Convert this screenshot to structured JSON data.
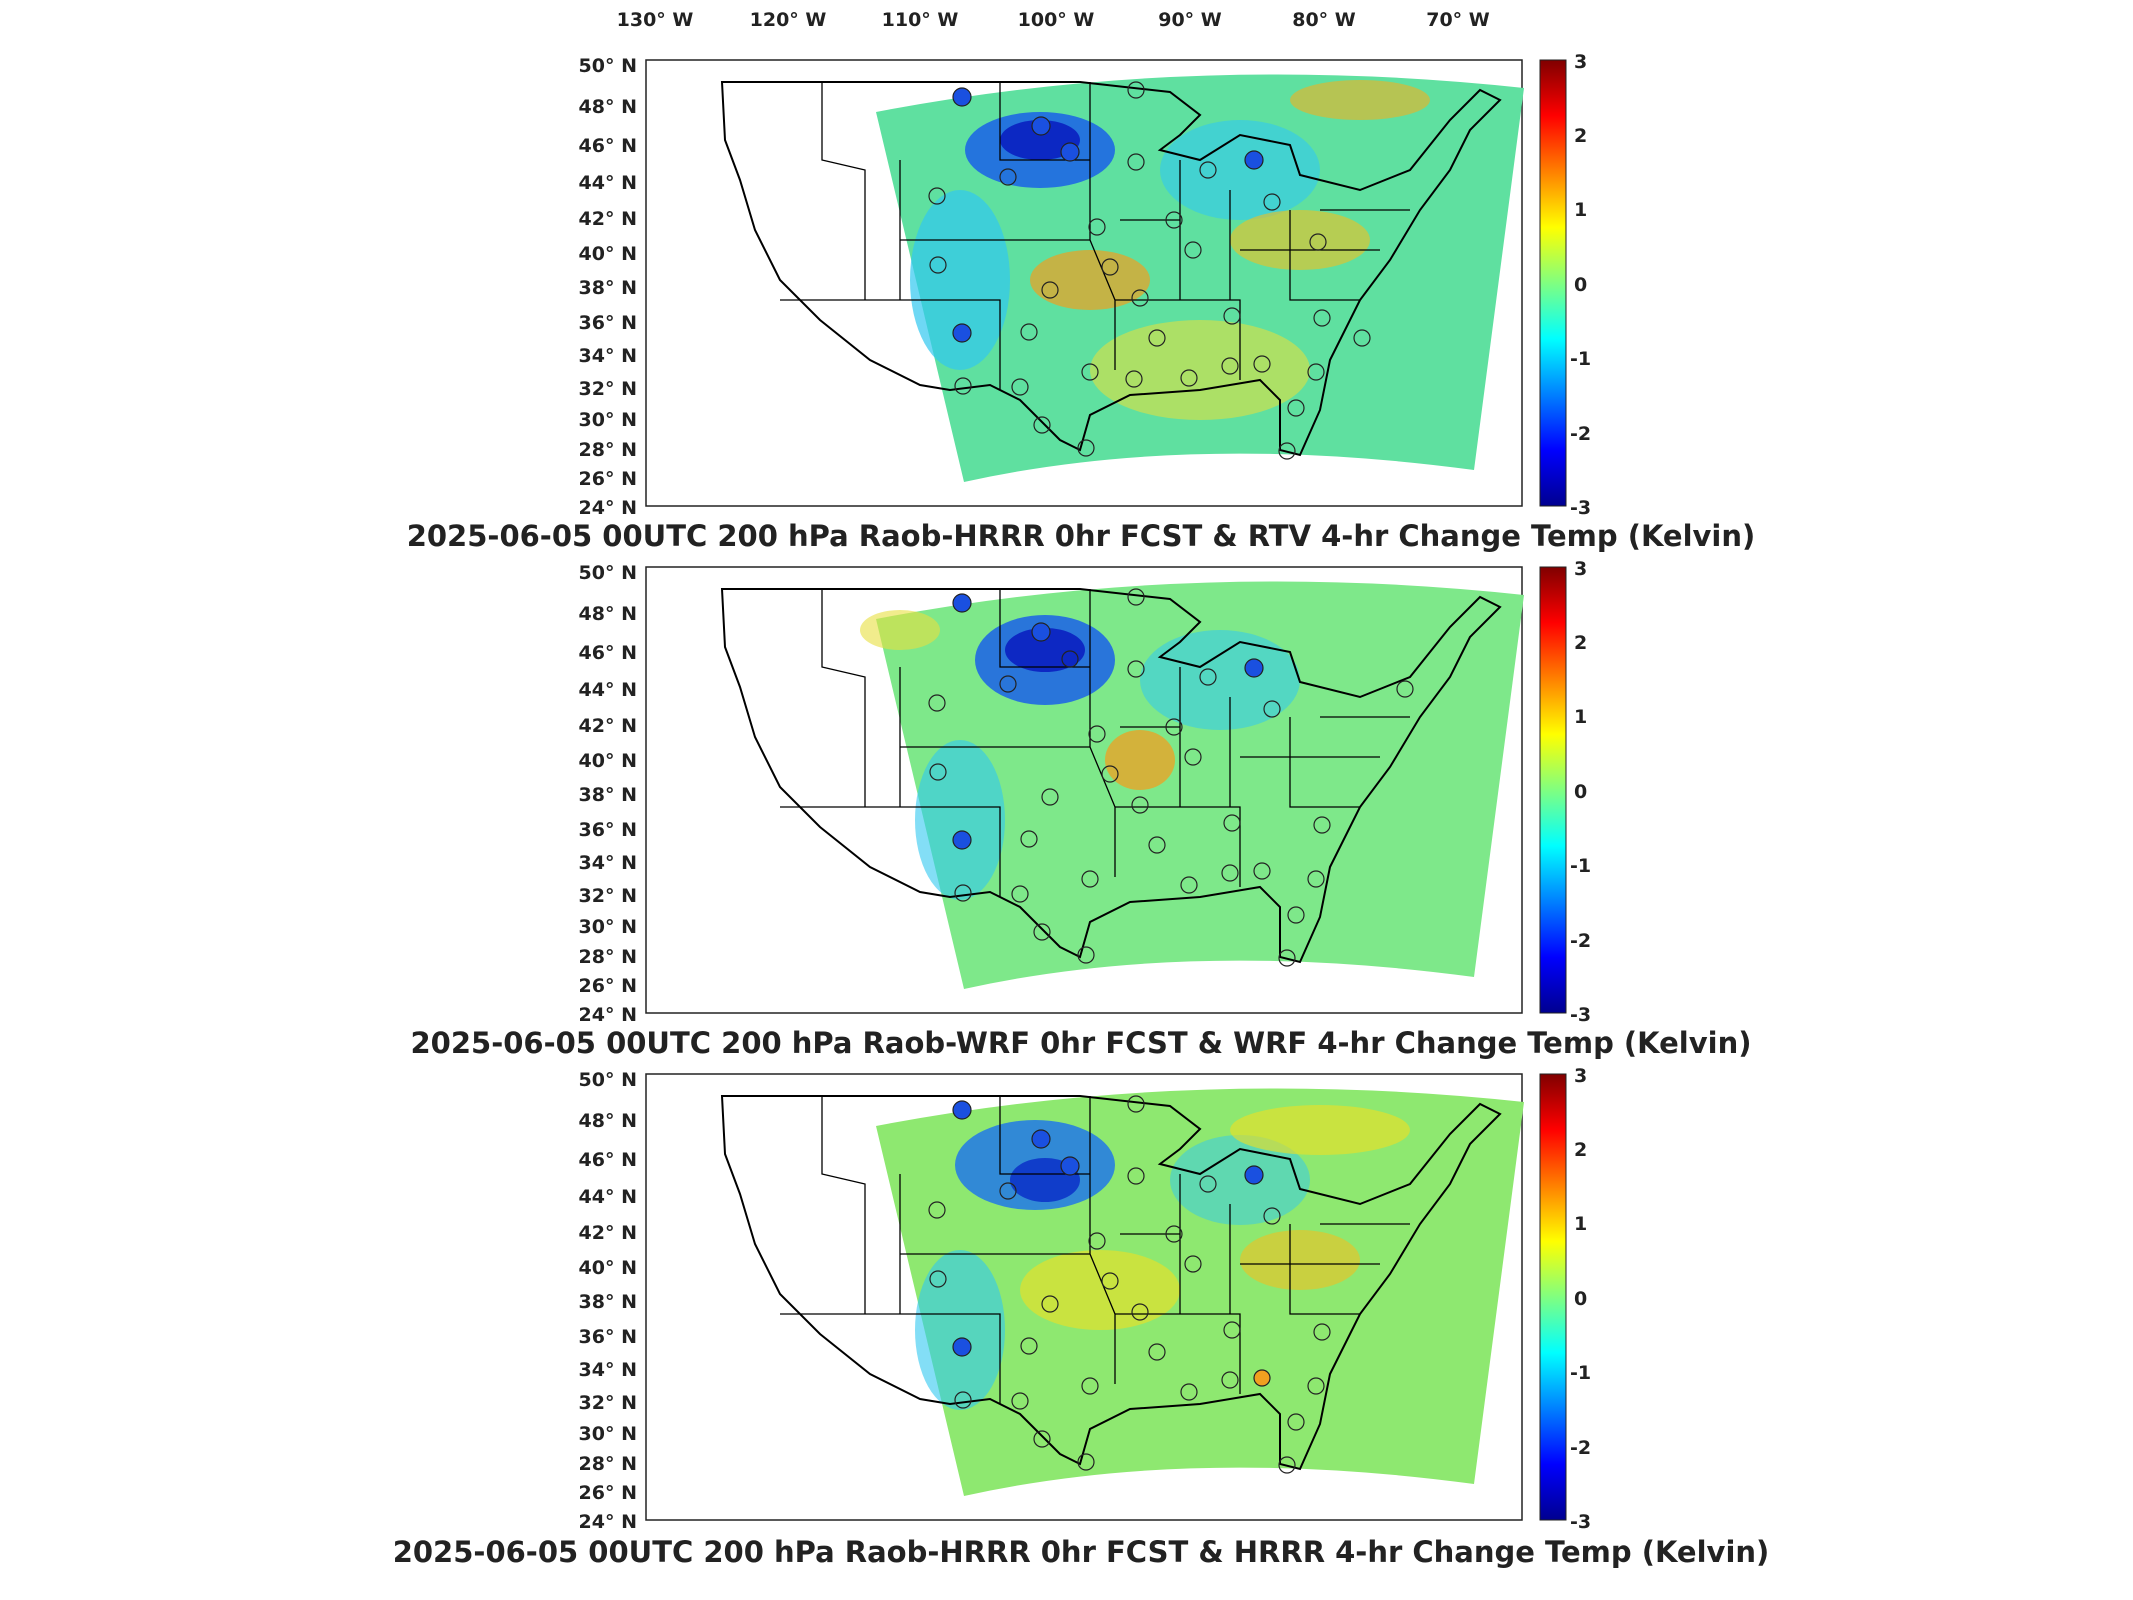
{
  "top_longitude_ticks": [
    "130° W",
    "120° W",
    "110° W",
    "100° W",
    "90° W",
    "80° W",
    "70° W"
  ],
  "latitude_ticks": [
    "50° N",
    "48° N",
    "46° N",
    "44° N",
    "42° N",
    "40° N",
    "38° N",
    "36° N",
    "34° N",
    "32° N",
    "30° N",
    "28° N",
    "26° N",
    "24° N"
  ],
  "colorbar_ticks": [
    "3",
    "2",
    "1",
    "0",
    "-1",
    "-2",
    "-3"
  ],
  "colors": {
    "colormap": [
      "#00008f",
      "#0000ff",
      "#0080ff",
      "#00ffff",
      "#80ff80",
      "#ffff00",
      "#ff8000",
      "#ff0000",
      "#800000"
    ],
    "outline": "#000000"
  },
  "panels": [
    {
      "title": "2025-06-05 00UTC 200 hPa Raob-HRRR 0hr FCST & RTV 4-hr Change Temp (Kelvin)",
      "field_description_source": "RTV 4-hr change",
      "colorbar_range": [
        -3,
        3
      ]
    },
    {
      "title": "2025-06-05 00UTC 200 hPa Raob-WRF 0hr FCST & WRF 4-hr Change Temp (Kelvin)",
      "field_description_source": "WRF 4-hr change",
      "colorbar_range": [
        -3,
        3
      ]
    },
    {
      "title": "2025-06-05 00UTC 200 hPa Raob-HRRR 0hr FCST & HRRR 4-hr Change Temp (Kelvin)",
      "field_description_source": "HRRR 4-hr change",
      "colorbar_range": [
        -3,
        3
      ]
    }
  ]
}
